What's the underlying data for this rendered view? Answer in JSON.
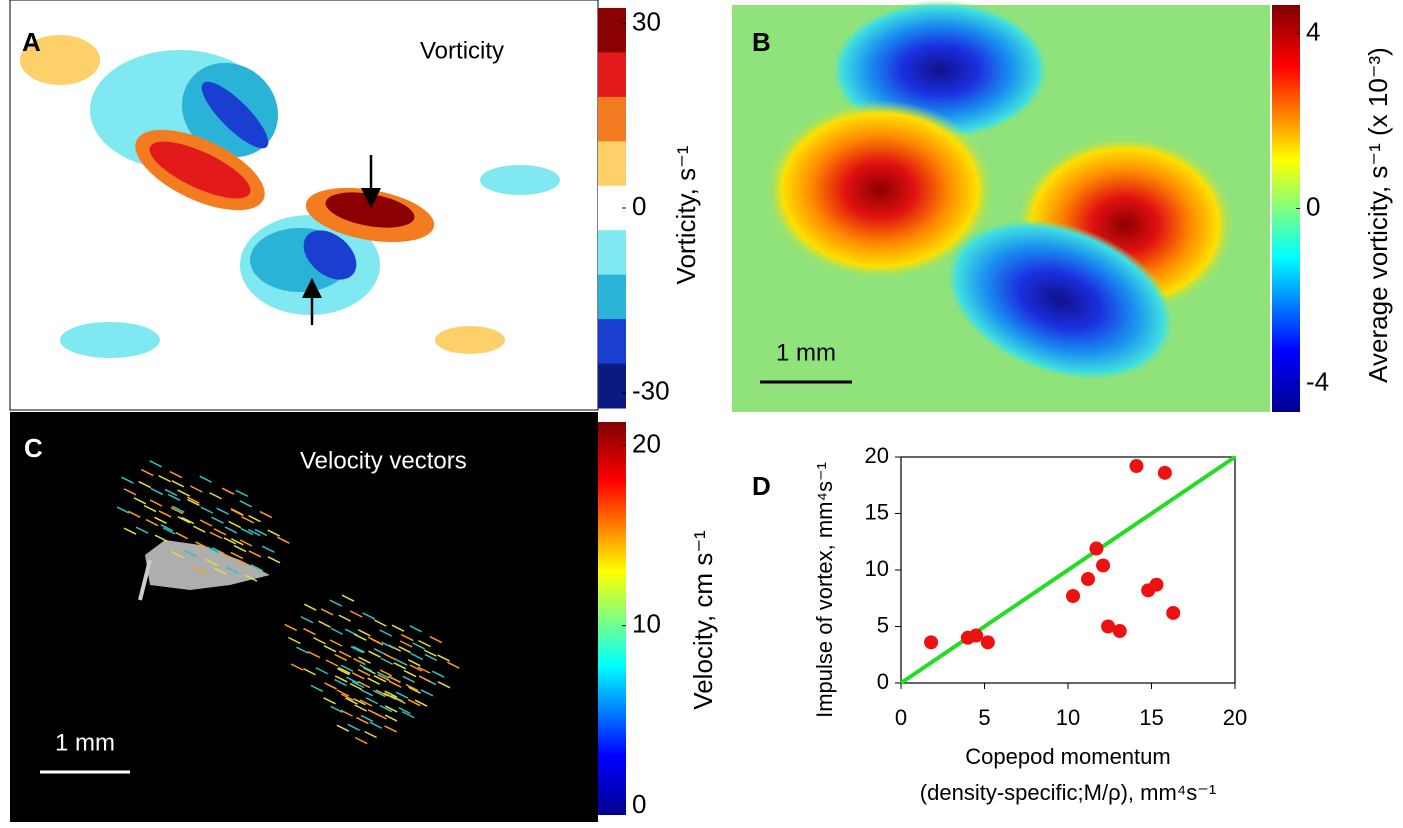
{
  "panels": {
    "a": {
      "letter": "A",
      "label": "Vorticity",
      "colorbar_title": "Vorticity, s⁻¹",
      "clim": [
        -32.5,
        32.5
      ],
      "cticks": [
        30,
        0,
        -30
      ],
      "colors": [
        "#8b0000",
        "#e31a1c",
        "#f47c20",
        "#fdd06a",
        "#ffffff",
        "#7fe8f0",
        "#2ab3d6",
        "#1a3fd0",
        "#0a1a80"
      ]
    },
    "b": {
      "letter": "B",
      "scale_bar": "1 mm",
      "colorbar_title": "Average vorticity, s⁻¹ (x 10⁻³)",
      "clim": [
        -4.65,
        4.65
      ],
      "cticks": [
        4,
        0,
        -4
      ]
    },
    "c": {
      "letter": "C",
      "label": "Velocity vectors",
      "scale_bar": "1 mm",
      "colorbar_title": "Velocity, cm s⁻¹",
      "clim": [
        -0.5,
        21.3
      ],
      "cticks": [
        20,
        10,
        0
      ]
    },
    "d": {
      "letter": "D"
    }
  },
  "chart_data": {
    "type": "scatter",
    "xlabel": [
      "Copepod momentum",
      "(density-specific;M/ρ), mm⁴s⁻¹"
    ],
    "ylabel": "Impulse of vortex, mm⁴s⁻¹",
    "x": [
      1.8,
      4.0,
      4.5,
      5.2,
      10.3,
      11.2,
      11.7,
      12.1,
      12.4,
      13.1,
      14.1,
      14.8,
      15.3,
      15.8,
      16.3
    ],
    "values": [
      3.6,
      4.0,
      4.2,
      3.6,
      7.7,
      9.2,
      11.9,
      10.4,
      5.0,
      4.6,
      19.2,
      8.2,
      8.7,
      18.6,
      6.2
    ],
    "color": "#ee1111",
    "fit": {
      "x": [
        0,
        20
      ],
      "y": [
        0,
        20
      ],
      "color": "#22dd22"
    },
    "xlim": [
      0,
      20
    ],
    "ylim": [
      0,
      20
    ],
    "xticks": [
      0,
      5,
      10,
      15,
      20
    ],
    "yticks": [
      0,
      5,
      10,
      15,
      20
    ]
  }
}
